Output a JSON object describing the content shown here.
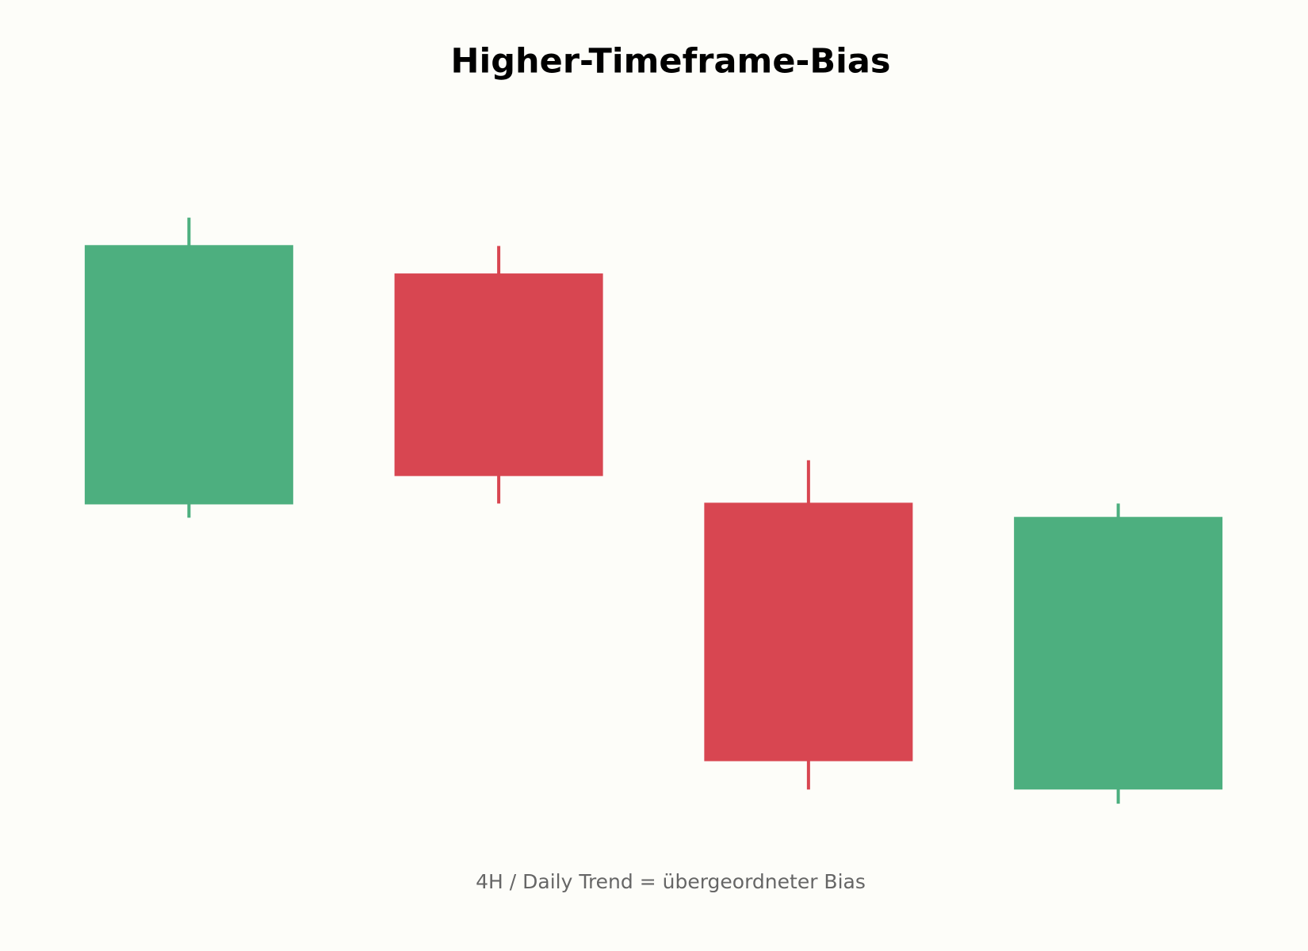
{
  "chart_data": {
    "type": "candlestick",
    "title": "Higher-Timeframe-Bias",
    "subtitle": "4H / Daily Trend = übergeordneter Bias",
    "open": [
      39.5,
      67.2,
      39.7,
      5.3
    ],
    "high": [
      73.9,
      70.5,
      44.8,
      39.6
    ],
    "low": [
      37.9,
      39.6,
      5.3,
      3.6
    ],
    "close": [
      70.6,
      42.9,
      8.7,
      38.0
    ],
    "ylim": [
      0,
      100
    ],
    "up_color": "#4daf7f",
    "down_color": "#d84651"
  }
}
